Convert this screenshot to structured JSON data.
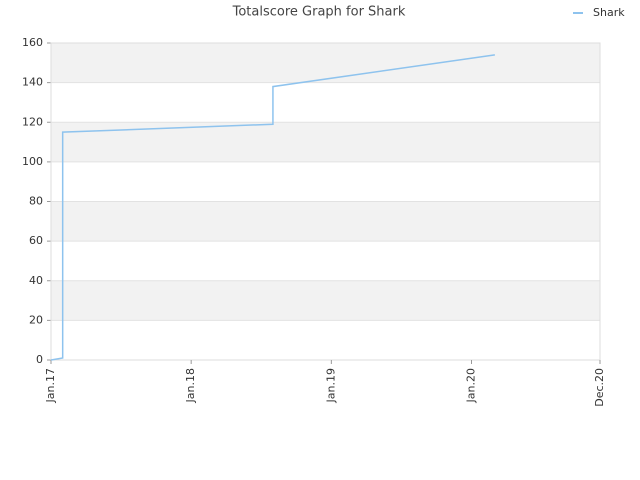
{
  "chart_data": {
    "type": "line",
    "title": "Totalscore Graph for Shark",
    "x": [
      "Jan.17",
      "Feb.17",
      "Feb.17",
      "Aug.18",
      "Aug.18",
      "Mar.20"
    ],
    "series": [
      {
        "name": "Shark",
        "color": "#8ec3ee",
        "values": [
          0,
          1,
          115,
          119,
          138,
          154
        ]
      }
    ],
    "xlim": [
      "Jan.17",
      "Dec.20"
    ],
    "xticks": [
      "Jan.17",
      "Jan.18",
      "Jan.19",
      "Jan.20",
      "Dec.20"
    ],
    "ylim": [
      0,
      160
    ],
    "yticks": [
      0,
      20,
      40,
      60,
      80,
      100,
      120,
      140,
      160
    ],
    "grid": true,
    "legend": "top-right"
  }
}
